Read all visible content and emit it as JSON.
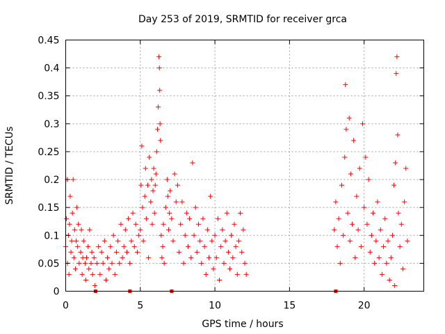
{
  "chart_data": {
    "type": "scatter",
    "title": "Day 253 of 2019, SRMTID for receiver grca",
    "xlabel": "GPS time / hours",
    "ylabel": "SRMTID / TECUs",
    "xlim": [
      0,
      24
    ],
    "ylim": [
      0,
      0.45
    ],
    "xticks": [
      0,
      5,
      10,
      15,
      20
    ],
    "xtick_labels": [
      "0",
      "5",
      "10",
      "15",
      "20"
    ],
    "yticks": [
      0,
      0.05,
      0.1,
      0.15,
      0.2,
      0.25,
      0.3,
      0.35,
      0.4,
      0.45
    ],
    "ytick_labels": [
      "0",
      "0.05",
      "0.1",
      "0.15",
      "0.2",
      "0.25",
      "0.3",
      "0.35",
      "0.4",
      "0.45"
    ],
    "grid": true,
    "marker": "+",
    "color": "#ff0000",
    "zero_markers_x": [
      2.0,
      4.3,
      7.1,
      18.1
    ],
    "series": [
      {
        "name": "SRMTID",
        "points": [
          [
            0.0,
            0.08
          ],
          [
            0.05,
            0.13
          ],
          [
            0.1,
            0.2
          ],
          [
            0.12,
            0.05
          ],
          [
            0.18,
            0.1
          ],
          [
            0.22,
            0.03
          ],
          [
            0.25,
            0.12
          ],
          [
            0.3,
            0.17
          ],
          [
            0.35,
            0.07
          ],
          [
            0.4,
            0.09
          ],
          [
            0.45,
            0.14
          ],
          [
            0.5,
            0.2
          ],
          [
            0.55,
            0.06
          ],
          [
            0.6,
            0.11
          ],
          [
            0.65,
            0.04
          ],
          [
            0.7,
            0.09
          ],
          [
            0.75,
            0.15
          ],
          [
            0.8,
            0.08
          ],
          [
            0.85,
            0.12
          ],
          [
            0.9,
            0.05
          ],
          [
            1.0,
            0.07
          ],
          [
            1.05,
            0.11
          ],
          [
            1.1,
            0.03
          ],
          [
            1.15,
            0.06
          ],
          [
            1.2,
            0.09
          ],
          [
            1.3,
            0.05
          ],
          [
            1.35,
            0.02
          ],
          [
            1.4,
            0.06
          ],
          [
            1.5,
            0.08
          ],
          [
            1.55,
            0.04
          ],
          [
            1.6,
            0.11
          ],
          [
            1.7,
            0.05
          ],
          [
            1.75,
            0.07
          ],
          [
            1.8,
            0.03
          ],
          [
            1.9,
            0.06
          ],
          [
            1.95,
            0.01
          ],
          [
            2.1,
            0.05
          ],
          [
            2.2,
            0.08
          ],
          [
            2.3,
            0.03
          ],
          [
            2.4,
            0.07
          ],
          [
            2.5,
            0.05
          ],
          [
            2.6,
            0.09
          ],
          [
            2.7,
            0.02
          ],
          [
            2.8,
            0.06
          ],
          [
            2.9,
            0.04
          ],
          [
            3.0,
            0.08
          ],
          [
            3.1,
            0.05
          ],
          [
            3.2,
            0.1
          ],
          [
            3.3,
            0.03
          ],
          [
            3.4,
            0.07
          ],
          [
            3.5,
            0.09
          ],
          [
            3.6,
            0.05
          ],
          [
            3.7,
            0.12
          ],
          [
            3.8,
            0.06
          ],
          [
            3.9,
            0.08
          ],
          [
            4.0,
            0.11
          ],
          [
            4.1,
            0.07
          ],
          [
            4.2,
            0.13
          ],
          [
            4.3,
            0.05
          ],
          [
            4.4,
            0.09
          ],
          [
            4.5,
            0.14
          ],
          [
            4.6,
            0.08
          ],
          [
            4.7,
            0.12
          ],
          [
            4.8,
            0.07
          ],
          [
            4.9,
            0.1
          ],
          [
            5.0,
            0.11
          ],
          [
            5.05,
            0.19
          ],
          [
            5.1,
            0.26
          ],
          [
            5.15,
            0.15
          ],
          [
            5.2,
            0.09
          ],
          [
            5.3,
            0.17
          ],
          [
            5.35,
            0.22
          ],
          [
            5.4,
            0.13
          ],
          [
            5.5,
            0.19
          ],
          [
            5.55,
            0.06
          ],
          [
            5.6,
            0.24
          ],
          [
            5.7,
            0.16
          ],
          [
            5.75,
            0.2
          ],
          [
            5.8,
            0.12
          ],
          [
            5.85,
            0.18
          ],
          [
            5.9,
            0.22
          ],
          [
            5.95,
            0.14
          ],
          [
            6.0,
            0.19
          ],
          [
            6.05,
            0.21
          ],
          [
            6.1,
            0.25
          ],
          [
            6.15,
            0.29
          ],
          [
            6.2,
            0.33
          ],
          [
            6.25,
            0.42
          ],
          [
            6.28,
            0.4
          ],
          [
            6.3,
            0.36
          ],
          [
            6.32,
            0.3
          ],
          [
            6.35,
            0.27
          ],
          [
            6.4,
            0.1
          ],
          [
            6.45,
            0.06
          ],
          [
            6.5,
            0.08
          ],
          [
            6.55,
            0.12
          ],
          [
            6.6,
            0.05
          ],
          [
            6.7,
            0.15
          ],
          [
            6.8,
            0.2
          ],
          [
            6.85,
            0.17
          ],
          [
            6.9,
            0.11
          ],
          [
            6.95,
            0.14
          ],
          [
            7.0,
            0.18
          ],
          [
            7.1,
            0.13
          ],
          [
            7.2,
            0.09
          ],
          [
            7.3,
            0.21
          ],
          [
            7.4,
            0.16
          ],
          [
            7.5,
            0.19
          ],
          [
            7.6,
            0.07
          ],
          [
            7.7,
            0.12
          ],
          [
            7.8,
            0.16
          ],
          [
            7.9,
            0.05
          ],
          [
            8.0,
            0.1
          ],
          [
            8.1,
            0.14
          ],
          [
            8.2,
            0.08
          ],
          [
            8.3,
            0.13
          ],
          [
            8.4,
            0.06
          ],
          [
            8.5,
            0.23
          ],
          [
            8.6,
            0.1
          ],
          [
            8.7,
            0.15
          ],
          [
            8.8,
            0.07
          ],
          [
            8.9,
            0.12
          ],
          [
            9.0,
            0.09
          ],
          [
            9.1,
            0.05
          ],
          [
            9.2,
            0.13
          ],
          [
            9.3,
            0.08
          ],
          [
            9.4,
            0.03
          ],
          [
            9.5,
            0.11
          ],
          [
            9.6,
            0.06
          ],
          [
            9.7,
            0.17
          ],
          [
            9.8,
            0.09
          ],
          [
            9.9,
            0.04
          ],
          [
            10.0,
            0.1
          ],
          [
            10.1,
            0.06
          ],
          [
            10.2,
            0.13
          ],
          [
            10.3,
            0.02
          ],
          [
            10.4,
            0.08
          ],
          [
            10.5,
            0.11
          ],
          [
            10.6,
            0.05
          ],
          [
            10.7,
            0.09
          ],
          [
            10.8,
            0.14
          ],
          [
            10.9,
            0.07
          ],
          [
            11.0,
            0.04
          ],
          [
            11.1,
            0.1
          ],
          [
            11.2,
            0.06
          ],
          [
            11.3,
            0.12
          ],
          [
            11.4,
            0.08
          ],
          [
            11.5,
            0.03
          ],
          [
            11.6,
            0.09
          ],
          [
            11.7,
            0.14
          ],
          [
            11.8,
            0.07
          ],
          [
            11.9,
            0.11
          ],
          [
            12.0,
            0.05
          ],
          [
            12.1,
            0.03
          ],
          [
            18.0,
            0.11
          ],
          [
            18.1,
            0.16
          ],
          [
            18.2,
            0.08
          ],
          [
            18.3,
            0.13
          ],
          [
            18.4,
            0.05
          ],
          [
            18.5,
            0.19
          ],
          [
            18.6,
            0.1
          ],
          [
            18.7,
            0.24
          ],
          [
            18.75,
            0.37
          ],
          [
            18.8,
            0.29
          ],
          [
            18.9,
            0.14
          ],
          [
            19.0,
            0.31
          ],
          [
            19.05,
            0.09
          ],
          [
            19.1,
            0.21
          ],
          [
            19.2,
            0.12
          ],
          [
            19.3,
            0.27
          ],
          [
            19.4,
            0.06
          ],
          [
            19.5,
            0.17
          ],
          [
            19.6,
            0.11
          ],
          [
            19.7,
            0.22
          ],
          [
            19.8,
            0.08
          ],
          [
            19.9,
            0.3
          ],
          [
            20.0,
            0.15
          ],
          [
            20.1,
            0.24
          ],
          [
            20.2,
            0.12
          ],
          [
            20.3,
            0.2
          ],
          [
            20.4,
            0.07
          ],
          [
            20.5,
            0.1
          ],
          [
            20.6,
            0.14
          ],
          [
            20.7,
            0.05
          ],
          [
            20.8,
            0.09
          ],
          [
            20.9,
            0.16
          ],
          [
            21.0,
            0.06
          ],
          [
            21.1,
            0.11
          ],
          [
            21.2,
            0.03
          ],
          [
            21.3,
            0.08
          ],
          [
            21.4,
            0.13
          ],
          [
            21.5,
            0.05
          ],
          [
            21.6,
            0.09
          ],
          [
            21.7,
            0.02
          ],
          [
            21.8,
            0.06
          ],
          [
            21.9,
            0.1
          ],
          [
            22.0,
            0.19
          ],
          [
            22.05,
            0.01
          ],
          [
            22.1,
            0.23
          ],
          [
            22.15,
            0.39
          ],
          [
            22.2,
            0.42
          ],
          [
            22.25,
            0.28
          ],
          [
            22.3,
            0.14
          ],
          [
            22.4,
            0.08
          ],
          [
            22.5,
            0.12
          ],
          [
            22.6,
            0.04
          ],
          [
            22.7,
            0.16
          ],
          [
            22.8,
            0.22
          ],
          [
            22.9,
            0.09
          ]
        ]
      }
    ]
  }
}
